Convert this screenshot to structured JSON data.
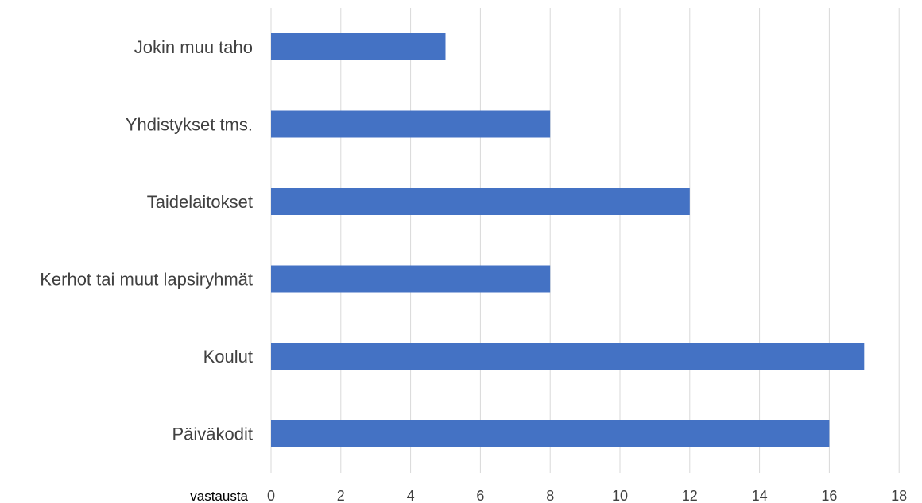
{
  "chart_data": {
    "type": "bar",
    "orientation": "horizontal",
    "title": "",
    "xlabel": "vastausta",
    "ylabel": "",
    "categories": [
      "Jokin muu taho",
      "Yhdistykset tms.",
      "Taidelaitokset",
      "Kerhot tai muut lapsiryhmät",
      "Koulut",
      "Päiväkodit"
    ],
    "values": [
      5,
      8,
      12,
      8,
      17,
      16
    ],
    "xlim": [
      0,
      18
    ],
    "xticks": [
      0,
      2,
      4,
      6,
      8,
      10,
      12,
      14,
      16,
      18
    ],
    "grid": true,
    "legend": "none",
    "bar_color": "#4472c4"
  }
}
